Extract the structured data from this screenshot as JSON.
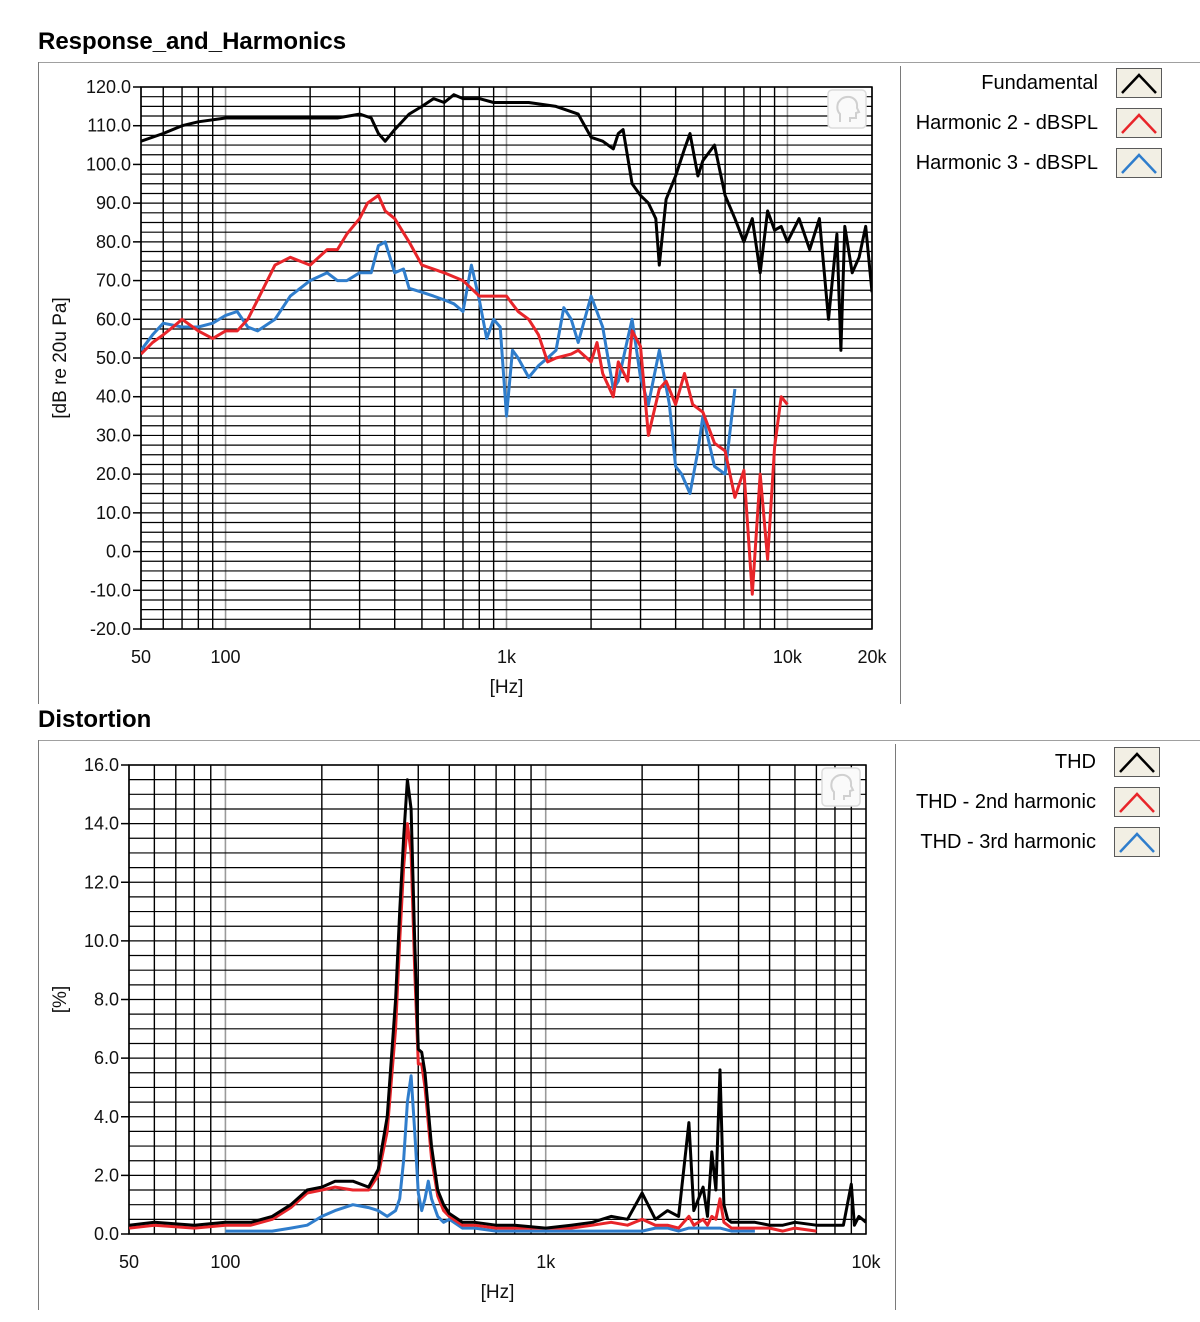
{
  "colors": {
    "fundamental": "#000000",
    "h2": "#e8252a",
    "h3": "#2f7dcc",
    "grid": "#000000",
    "plot_bg": "#ffffff"
  },
  "icons": {
    "plot_tool": "person-head-icon"
  },
  "chart_data": [
    {
      "type": "line",
      "title": "Response_and_Harmonics",
      "xscale": "log",
      "xlabel": "[Hz]",
      "ylabel": "[dB re 20u Pa]",
      "xlim": [
        50,
        20000
      ],
      "ylim": [
        -20,
        120
      ],
      "xticks": [
        50,
        100,
        1000,
        10000,
        20000
      ],
      "xtick_labels": [
        "50",
        "100",
        "1k",
        "10k",
        "20k"
      ],
      "yticks": [
        120,
        110,
        100,
        90,
        80,
        70,
        60,
        50,
        40,
        30,
        20,
        10,
        0,
        -10,
        -20
      ],
      "ytick_labels": [
        "120.0",
        "110.0",
        "100.0",
        "90.0",
        "80.0",
        "70.0",
        "60.0",
        "50.0",
        "40.0",
        "30.0",
        "20.0",
        "10.0",
        "0.0",
        "-10.0",
        "-20.0"
      ],
      "legend_position": "right",
      "series": [
        {
          "name": "Fundamental",
          "color": "#000000",
          "x": [
            50,
            60,
            70,
            80,
            100,
            150,
            200,
            250,
            300,
            330,
            350,
            370,
            400,
            450,
            500,
            550,
            600,
            650,
            700,
            750,
            800,
            900,
            1000,
            1200,
            1500,
            1800,
            2000,
            2200,
            2400,
            2500,
            2600,
            2800,
            3000,
            3200,
            3400,
            3500,
            3700,
            4000,
            4300,
            4500,
            4800,
            5000,
            5500,
            6000,
            6500,
            7000,
            7500,
            8000,
            8500,
            9000,
            9500,
            10000,
            11000,
            12000,
            13000,
            14000,
            15000,
            15500,
            16000,
            17000,
            18000,
            19000,
            20000
          ],
          "values": [
            106,
            108,
            110,
            111,
            112,
            112,
            112,
            112,
            113,
            112,
            108,
            106,
            109,
            113,
            115,
            117,
            116,
            118,
            117,
            117,
            117,
            116,
            116,
            116,
            115,
            113,
            107,
            106,
            104,
            108,
            109,
            95,
            92,
            90,
            86,
            74,
            91,
            97,
            104,
            108,
            97,
            101,
            105,
            92,
            86,
            80,
            86,
            72,
            88,
            83,
            84,
            80,
            86,
            78,
            86,
            60,
            82,
            52,
            84,
            72,
            76,
            84,
            67
          ]
        },
        {
          "name": "Harmonic 2 - dBSPL",
          "color": "#e8252a",
          "x": [
            50,
            55,
            60,
            65,
            70,
            80,
            90,
            100,
            110,
            120,
            130,
            150,
            170,
            200,
            230,
            250,
            270,
            300,
            320,
            350,
            370,
            400,
            450,
            500,
            600,
            700,
            800,
            900,
            1000,
            1100,
            1200,
            1300,
            1400,
            1500,
            1700,
            1800,
            2000,
            2100,
            2200,
            2400,
            2500,
            2700,
            2800,
            3000,
            3200,
            3500,
            3700,
            4000,
            4300,
            4600,
            5000,
            5500,
            6000,
            6500,
            7000,
            7500,
            8000,
            8500,
            9000,
            9500,
            10000
          ],
          "values": [
            51,
            54,
            56,
            58,
            60,
            57,
            55,
            57,
            57,
            60,
            65,
            74,
            76,
            74,
            78,
            78,
            82,
            86,
            90,
            92,
            88,
            86,
            80,
            74,
            72,
            70,
            66,
            66,
            66,
            62,
            60,
            56,
            49,
            50,
            51,
            52,
            49,
            54,
            46,
            40,
            49,
            44,
            57,
            53,
            30,
            42,
            44,
            38,
            46,
            38,
            36,
            28,
            26,
            14,
            21,
            -11,
            20,
            -2,
            27,
            40,
            38
          ]
        },
        {
          "name": "Harmonic 3 - dBSPL",
          "color": "#2f7dcc",
          "x": [
            50,
            55,
            60,
            70,
            80,
            90,
            100,
            110,
            120,
            130,
            150,
            170,
            200,
            230,
            250,
            270,
            300,
            330,
            350,
            370,
            400,
            430,
            450,
            500,
            550,
            600,
            650,
            700,
            750,
            800,
            850,
            900,
            950,
            1000,
            1050,
            1100,
            1200,
            1300,
            1400,
            1500,
            1600,
            1700,
            1800,
            2000,
            2200,
            2400,
            2500,
            2700,
            2800,
            3000,
            3200,
            3500,
            3800,
            4000,
            4200,
            4500,
            4800,
            5000,
            5500,
            6000,
            6500
          ],
          "values": [
            52,
            56,
            59,
            58,
            58,
            59,
            61,
            62,
            58,
            57,
            60,
            66,
            70,
            72,
            70,
            70,
            72,
            72,
            79,
            80,
            72,
            73,
            68,
            67,
            66,
            65,
            64,
            62,
            74,
            65,
            55,
            60,
            58,
            35,
            52,
            50,
            45,
            48,
            50,
            52,
            63,
            60,
            54,
            66,
            58,
            42,
            44,
            55,
            60,
            45,
            38,
            52,
            38,
            22,
            20,
            15,
            26,
            35,
            22,
            20,
            42
          ]
        }
      ]
    },
    {
      "type": "line",
      "title": "Distortion",
      "xscale": "log",
      "xlabel": "[Hz]",
      "ylabel": "[%]",
      "xlim": [
        50,
        10000
      ],
      "ylim": [
        0,
        16
      ],
      "xticks": [
        50,
        100,
        1000,
        10000
      ],
      "xtick_labels": [
        "50",
        "100",
        "1k",
        "10k"
      ],
      "yticks": [
        16,
        14,
        12,
        10,
        8,
        6,
        4,
        2,
        0
      ],
      "ytick_labels": [
        "16.0",
        "14.0",
        "12.0",
        "10.0",
        "8.0",
        "6.0",
        "4.0",
        "2.0",
        "0.0"
      ],
      "legend_position": "right",
      "series": [
        {
          "name": "THD",
          "color": "#000000",
          "x": [
            50,
            60,
            80,
            100,
            120,
            140,
            160,
            180,
            200,
            220,
            250,
            280,
            300,
            320,
            340,
            350,
            360,
            370,
            380,
            390,
            400,
            410,
            420,
            440,
            460,
            480,
            500,
            550,
            600,
            700,
            800,
            1000,
            1200,
            1400,
            1600,
            1800,
            2000,
            2200,
            2400,
            2600,
            2800,
            2900,
            3000,
            3100,
            3200,
            3300,
            3400,
            3500,
            3600,
            3700,
            3800,
            4000,
            4500,
            5000,
            5500,
            6000,
            7000,
            8000,
            8500,
            9000,
            9200,
            9500,
            10000
          ],
          "values": [
            0.3,
            0.4,
            0.3,
            0.4,
            0.4,
            0.6,
            1.0,
            1.5,
            1.6,
            1.8,
            1.8,
            1.6,
            2.2,
            4.0,
            8.0,
            11.0,
            13.5,
            15.5,
            14.5,
            10.0,
            6.3,
            6.2,
            5.5,
            3.0,
            1.5,
            1.0,
            0.7,
            0.4,
            0.4,
            0.3,
            0.3,
            0.2,
            0.3,
            0.4,
            0.6,
            0.5,
            1.4,
            0.5,
            0.8,
            0.6,
            3.8,
            0.8,
            1.2,
            1.6,
            0.6,
            2.8,
            1.5,
            5.6,
            1.0,
            0.5,
            0.4,
            0.4,
            0.4,
            0.3,
            0.3,
            0.4,
            0.3,
            0.3,
            0.3,
            1.7,
            0.3,
            0.6,
            0.4
          ]
        },
        {
          "name": "THD - 2nd harmonic",
          "color": "#e8252a",
          "x": [
            50,
            60,
            80,
            100,
            120,
            140,
            160,
            180,
            200,
            220,
            250,
            280,
            300,
            320,
            340,
            350,
            360,
            370,
            380,
            390,
            400,
            410,
            420,
            440,
            460,
            480,
            500,
            550,
            600,
            700,
            800,
            1000,
            1200,
            1400,
            1600,
            1800,
            2000,
            2200,
            2400,
            2600,
            2800,
            2900,
            3000,
            3100,
            3200,
            3300,
            3400,
            3500,
            3600,
            3700,
            3800,
            4000,
            4500,
            5000,
            5500,
            6000,
            7000
          ],
          "values": [
            0.2,
            0.3,
            0.2,
            0.3,
            0.3,
            0.5,
            0.9,
            1.4,
            1.5,
            1.6,
            1.5,
            1.5,
            2.0,
            3.5,
            7.0,
            10.0,
            12.5,
            14.0,
            13.0,
            9.0,
            5.8,
            5.8,
            5.0,
            2.6,
            1.3,
            0.8,
            0.6,
            0.3,
            0.3,
            0.2,
            0.2,
            0.2,
            0.2,
            0.3,
            0.4,
            0.3,
            0.5,
            0.3,
            0.3,
            0.2,
            0.6,
            0.3,
            0.4,
            0.5,
            0.3,
            0.6,
            0.5,
            1.2,
            0.4,
            0.3,
            0.2,
            0.2,
            0.2,
            0.2,
            0.1,
            0.2,
            0.1
          ]
        },
        {
          "name": "THD - 3rd harmonic",
          "color": "#2f7dcc",
          "x": [
            100,
            120,
            140,
            160,
            180,
            200,
            220,
            250,
            280,
            300,
            320,
            340,
            350,
            360,
            370,
            380,
            390,
            400,
            410,
            420,
            430,
            440,
            460,
            480,
            500,
            550,
            600,
            700,
            800,
            900,
            1000,
            1200,
            1400,
            1600,
            1800,
            2000,
            2200,
            2400,
            2600,
            2800,
            3000,
            3200,
            3500,
            3800,
            4000,
            4500
          ],
          "values": [
            0.1,
            0.1,
            0.1,
            0.2,
            0.3,
            0.6,
            0.8,
            1.0,
            0.9,
            0.8,
            0.6,
            0.8,
            1.2,
            2.5,
            4.5,
            5.4,
            3.5,
            1.4,
            0.8,
            1.2,
            1.8,
            1.2,
            0.6,
            0.4,
            0.5,
            0.2,
            0.2,
            0.1,
            0.1,
            0.1,
            0.1,
            0.1,
            0.1,
            0.1,
            0.1,
            0.1,
            0.2,
            0.2,
            0.1,
            0.2,
            0.2,
            0.2,
            0.2,
            0.1,
            0.1,
            0.1
          ]
        }
      ]
    }
  ]
}
